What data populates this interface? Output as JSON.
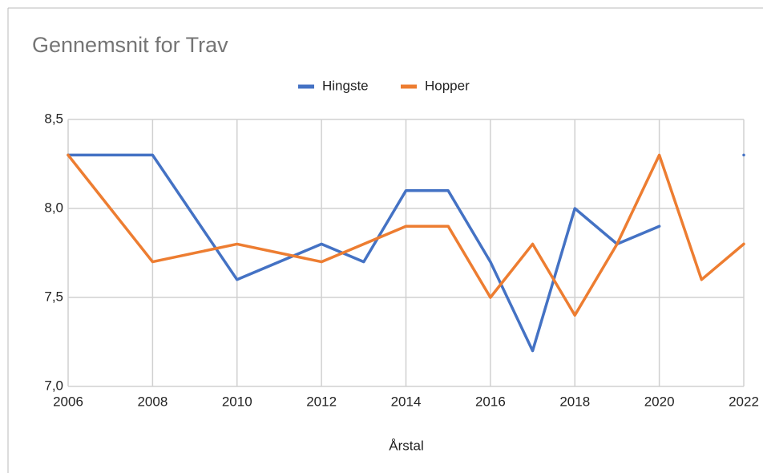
{
  "chart_data": {
    "type": "line",
    "title": "Gennemsnit for Trav",
    "x_label": "Årstal",
    "legend": "top",
    "grid": true,
    "series": [
      {
        "name": "Hingste",
        "color": "#4472c4",
        "x": [
          2006,
          2008,
          2010,
          2012,
          2013,
          2014,
          2015,
          2016,
          2017,
          2018,
          2019,
          2020,
          2021,
          2022
        ],
        "values": [
          8.3,
          8.3,
          7.6,
          7.8,
          7.7,
          8.1,
          8.1,
          7.7,
          7.2,
          8.0,
          7.8,
          7.9,
          null,
          8.3
        ]
      },
      {
        "name": "Hopper",
        "color": "#ed7d31",
        "x": [
          2006,
          2008,
          2010,
          2012,
          2014,
          2015,
          2016,
          2017,
          2018,
          2019,
          2020,
          2021,
          2022
        ],
        "values": [
          8.3,
          7.7,
          7.8,
          7.7,
          7.9,
          7.9,
          7.5,
          7.8,
          7.4,
          7.8,
          8.3,
          7.6,
          7.8
        ]
      }
    ],
    "xlim": [
      2006,
      2022
    ],
    "xticks": [
      2006,
      2008,
      2010,
      2012,
      2014,
      2016,
      2018,
      2020,
      2022
    ],
    "ylim": [
      7.0,
      8.5
    ],
    "yticks": [
      {
        "value": 7.0,
        "label": "7,0"
      },
      {
        "value": 7.5,
        "label": "7,5"
      },
      {
        "value": 8.0,
        "label": "8,0"
      },
      {
        "value": 8.5,
        "label": "8,5"
      }
    ]
  }
}
